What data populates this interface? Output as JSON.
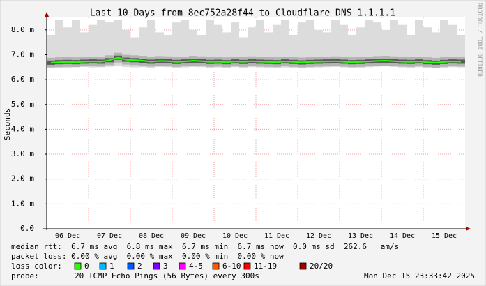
{
  "chart_data": {
    "type": "smoke",
    "title": "Last 10 Days from 8ec752a28f44 to Cloudflare DNS 1.1.1.1",
    "ylabel": "Seconds",
    "watermark": "RRDTOOL / TOBI OETIKER",
    "xlim": [
      0,
      10
    ],
    "xticks": [
      {
        "value": 0.5,
        "label": "06 Dec"
      },
      {
        "value": 1.5,
        "label": "07 Dec"
      },
      {
        "value": 2.5,
        "label": "08 Dec"
      },
      {
        "value": 3.5,
        "label": "09 Dec"
      },
      {
        "value": 4.5,
        "label": "10 Dec"
      },
      {
        "value": 5.5,
        "label": "11 Dec"
      },
      {
        "value": 6.5,
        "label": "12 Dec"
      },
      {
        "value": 7.5,
        "label": "13 Dec"
      },
      {
        "value": 8.5,
        "label": "14 Dec"
      },
      {
        "value": 9.5,
        "label": "15 Dec"
      }
    ],
    "xgrid": [
      1,
      2,
      3,
      4,
      5,
      6,
      7,
      8,
      9
    ],
    "ylim": [
      0,
      0.0085
    ],
    "yticks": [
      {
        "value": 0,
        "label": "0.0"
      },
      {
        "value": 0.001,
        "label": "1.0 m"
      },
      {
        "value": 0.002,
        "label": "2.0 m"
      },
      {
        "value": 0.003,
        "label": "3.0 m"
      },
      {
        "value": 0.004,
        "label": "4.0 m"
      },
      {
        "value": 0.005,
        "label": "5.0 m"
      },
      {
        "value": 0.006,
        "label": "6.0 m"
      },
      {
        "value": 0.007,
        "label": "7.0 m"
      },
      {
        "value": 0.008,
        "label": "8.0 m"
      }
    ],
    "grid": true,
    "median_color": "#26ff00",
    "x": [
      0.1,
      0.3,
      0.5,
      0.7,
      0.9,
      1.1,
      1.3,
      1.5,
      1.7,
      1.9,
      2.1,
      2.3,
      2.5,
      2.7,
      2.9,
      3.1,
      3.3,
      3.5,
      3.7,
      3.9,
      4.1,
      4.3,
      4.5,
      4.7,
      4.9,
      5.1,
      5.3,
      5.5,
      5.7,
      5.9,
      6.1,
      6.3,
      6.5,
      6.7,
      6.9,
      7.1,
      7.3,
      7.5,
      7.7,
      7.9,
      8.1,
      8.3,
      8.5,
      8.7,
      8.9,
      9.1,
      9.3,
      9.5,
      9.7,
      9.9
    ],
    "median": [
      0.00668,
      0.0067,
      0.00671,
      0.0067,
      0.00672,
      0.00673,
      0.00672,
      0.00678,
      0.00688,
      0.0068,
      0.00678,
      0.00676,
      0.00672,
      0.00675,
      0.00674,
      0.00671,
      0.00673,
      0.00676,
      0.00674,
      0.00671,
      0.00672,
      0.0067,
      0.00673,
      0.00671,
      0.00674,
      0.00672,
      0.00671,
      0.0067,
      0.00673,
      0.00671,
      0.00669,
      0.00671,
      0.00672,
      0.00673,
      0.00674,
      0.00672,
      0.0067,
      0.00671,
      0.00673,
      0.00675,
      0.00676,
      0.00674,
      0.00672,
      0.00671,
      0.00673,
      0.0067,
      0.00668,
      0.00671,
      0.00673,
      0.00672
    ],
    "smoke_high": [
      0.0078,
      0.0084,
      0.0081,
      0.0084,
      0.0079,
      0.0082,
      0.0084,
      0.0083,
      0.0084,
      0.008,
      0.0077,
      0.0081,
      0.0084,
      0.0079,
      0.0078,
      0.0083,
      0.0084,
      0.008,
      0.0078,
      0.0084,
      0.0082,
      0.0079,
      0.0083,
      0.0077,
      0.0081,
      0.0084,
      0.0079,
      0.0082,
      0.0084,
      0.0078,
      0.0083,
      0.0084,
      0.008,
      0.0079,
      0.0084,
      0.0082,
      0.0078,
      0.0081,
      0.0084,
      0.0083,
      0.008,
      0.0084,
      0.0082,
      0.0078,
      0.0084,
      0.0081,
      0.0079,
      0.0084,
      0.0082,
      0.0078
    ],
    "smoke_low": [
      0.0065,
      0.00648,
      0.00646,
      0.0065,
      0.00652,
      0.00649,
      0.0065,
      0.00652,
      0.00655,
      0.00651,
      0.00649,
      0.0065,
      0.00648,
      0.00651,
      0.0065,
      0.00647,
      0.00649,
      0.00651,
      0.0065,
      0.00648,
      0.00649,
      0.00647,
      0.0065,
      0.00648,
      0.0065,
      0.00649,
      0.00647,
      0.00646,
      0.00649,
      0.00648,
      0.00645,
      0.00648,
      0.00649,
      0.0065,
      0.00651,
      0.00649,
      0.00647,
      0.00648,
      0.0065,
      0.00652,
      0.00653,
      0.00651,
      0.00649,
      0.00648,
      0.0065,
      0.00647,
      0.00645,
      0.00648,
      0.0065,
      0.00649
    ],
    "stats": [
      "median rtt:  6.7 ms avg  6.8 ms max  6.7 ms min  6.7 ms now  0.0 ms sd  262.6   am/s",
      "packet loss: 0.00 % avg  0.00 % max  0.00 % min  0.00 % now"
    ],
    "loss_title": "loss color:",
    "loss_legend": [
      {
        "label": "0",
        "color": "#26ff00"
      },
      {
        "label": "1",
        "color": "#00b8ff"
      },
      {
        "label": "2",
        "color": "#0059ff"
      },
      {
        "label": "3",
        "color": "#7e00ff"
      },
      {
        "label": "4-5",
        "color": "#ff00ff"
      },
      {
        "label": "6-10",
        "color": "#ff5500"
      },
      {
        "label": "11-19",
        "color": "#ff0000"
      },
      {
        "label": "20/20",
        "color": "#a10000"
      }
    ],
    "probe_title": "probe:",
    "probe": "20 ICMP Echo Pings (56 Bytes) every 300s",
    "timestamp": "Mon Dec 15 23:33:42 2025"
  }
}
